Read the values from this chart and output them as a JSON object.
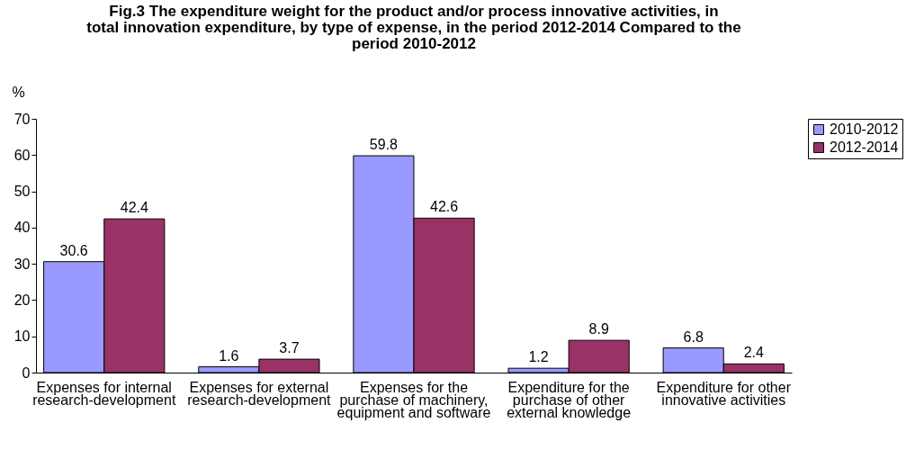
{
  "chart_data": {
    "type": "bar",
    "title": "Fig.3 The expenditure weight for the product and/or process innovative activities, in total innovation expenditure, by type of expense, in the period 2012-2014 Compared to the period 2010-2012",
    "ylabel": "%",
    "categories": [
      "Expenses for internal research-development",
      "Expenses for external research-development",
      "Expenses for the purchase of machinery, equipment and software",
      "Expenditure for the purchase of other external knowledge",
      "Expenditure for other innovative activities"
    ],
    "series": [
      {
        "name": "2010-2012",
        "color": "#9999ff",
        "values": [
          30.6,
          1.6,
          59.8,
          1.2,
          6.8
        ]
      },
      {
        "name": "2012-2014",
        "color": "#993366",
        "values": [
          42.4,
          3.7,
          42.6,
          8.9,
          2.4
        ]
      }
    ],
    "ylim": [
      0,
      70
    ],
    "yticks": [
      0,
      10,
      20,
      30,
      40,
      50,
      60,
      70
    ],
    "grid": false,
    "legend": "right",
    "data_labels": true
  }
}
